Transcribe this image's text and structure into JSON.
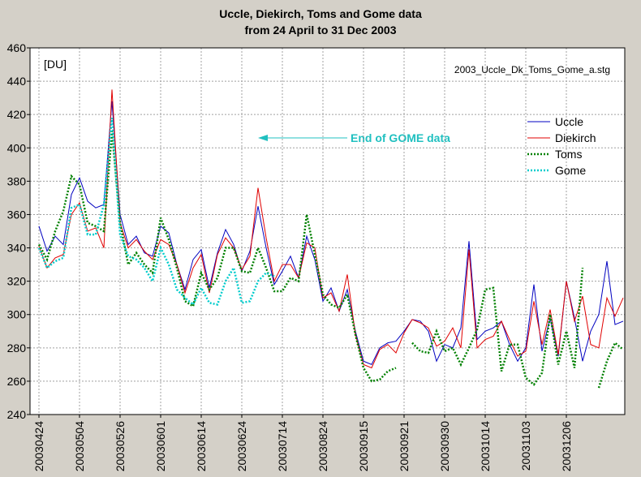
{
  "chart_data": {
    "type": "line",
    "title": "Uccle, Diekirch, Toms and Gome data",
    "subtitle": "from 24 April to 31 Dec 2003",
    "y_unit_label": "[DU]",
    "file_label": "2003_Uccle_Dk_Toms_Gome_a.stg",
    "annotation": "End of GOME data",
    "categories": [
      "20030424",
      null,
      null,
      null,
      null,
      "20030504",
      null,
      null,
      null,
      null,
      "20030526",
      null,
      null,
      null,
      null,
      "20030601",
      null,
      null,
      null,
      null,
      "20030614",
      null,
      null,
      null,
      null,
      "20030624",
      null,
      null,
      null,
      null,
      "20030714",
      null,
      null,
      null,
      null,
      "20030824",
      null,
      null,
      null,
      null,
      "20030915",
      null,
      null,
      null,
      null,
      "20030921",
      null,
      null,
      null,
      null,
      "20030930",
      null,
      null,
      null,
      null,
      "20031014",
      null,
      null,
      null,
      null,
      "20031103",
      null,
      null,
      null,
      null,
      "20031206",
      null,
      null,
      null,
      null,
      null,
      null,
      null
    ],
    "series": [
      {
        "name": "Uccle",
        "color": "#0000c0",
        "style": "solid",
        "values": [
          353,
          338,
          347,
          342,
          372,
          382,
          368,
          364,
          366,
          428,
          360,
          342,
          347,
          337,
          335,
          353,
          349,
          330,
          315,
          333,
          339,
          316,
          337,
          351,
          342,
          326,
          338,
          365,
          340,
          318,
          326,
          335,
          322,
          347,
          333,
          308,
          316,
          302,
          315,
          290,
          272,
          270,
          280,
          283,
          284,
          290,
          297,
          296,
          290,
          272,
          282,
          280,
          292,
          344,
          285,
          290,
          292,
          296,
          282,
          272,
          280,
          318,
          278,
          298,
          275,
          320,
          298,
          272,
          290,
          300,
          332,
          294,
          296
        ]
      },
      {
        "name": "Diekirch",
        "color": "#e00000",
        "style": "solid",
        "values": [
          341,
          328,
          334,
          336,
          360,
          367,
          350,
          352,
          340,
          435,
          355,
          340,
          345,
          338,
          333,
          345,
          342,
          330,
          313,
          328,
          336,
          313,
          336,
          346,
          340,
          327,
          335,
          376,
          346,
          320,
          330,
          330,
          322,
          343,
          340,
          310,
          313,
          302,
          324,
          288,
          270,
          268,
          279,
          282,
          277,
          289,
          297,
          295,
          292,
          281,
          284,
          292,
          280,
          339,
          280,
          285,
          287,
          296,
          285,
          275,
          278,
          308,
          282,
          303,
          276,
          320,
          296,
          311,
          282,
          280,
          310,
          299,
          310
        ]
      },
      {
        "name": "Toms",
        "color": "#008000",
        "style": "dotted",
        "values": [
          342,
          333,
          350,
          362,
          383,
          378,
          355,
          353,
          350,
          410,
          355,
          330,
          337,
          330,
          325,
          358,
          345,
          328,
          308,
          305,
          325,
          315,
          322,
          340,
          340,
          326,
          325,
          340,
          328,
          314,
          314,
          322,
          320,
          360,
          336,
          312,
          306,
          304,
          312,
          288,
          268,
          260,
          261,
          266,
          268,
          null,
          283,
          278,
          277,
          290,
          278,
          280,
          270,
          280,
          291,
          315,
          316,
          266,
          282,
          282,
          262,
          258,
          265,
          300,
          270,
          290,
          268,
          328,
          null,
          256,
          272,
          283,
          279
        ]
      },
      {
        "name": "Gome",
        "color": "#00cccc",
        "style": "dotted",
        "values": [
          340,
          328,
          332,
          334,
          364,
          366,
          348,
          348,
          366,
          418,
          348,
          335,
          333,
          328,
          320,
          340,
          330,
          315,
          310,
          306,
          316,
          307,
          306,
          320,
          328,
          307,
          308,
          320,
          325,
          323,
          null,
          null,
          null,
          null,
          null,
          null,
          null,
          null,
          null,
          null,
          null,
          null,
          null,
          null,
          null,
          null,
          null,
          null,
          null,
          null,
          null,
          null,
          null,
          null,
          null,
          null,
          null,
          null,
          null,
          null,
          null,
          null,
          null,
          null,
          null,
          null,
          null,
          null,
          null,
          null,
          null,
          null,
          null
        ]
      }
    ],
    "ylim": [
      240,
      460
    ],
    "yticks": [
      240,
      260,
      280,
      300,
      320,
      340,
      360,
      380,
      400,
      420,
      440,
      460
    ],
    "grid": true,
    "legend": "upper right"
  }
}
